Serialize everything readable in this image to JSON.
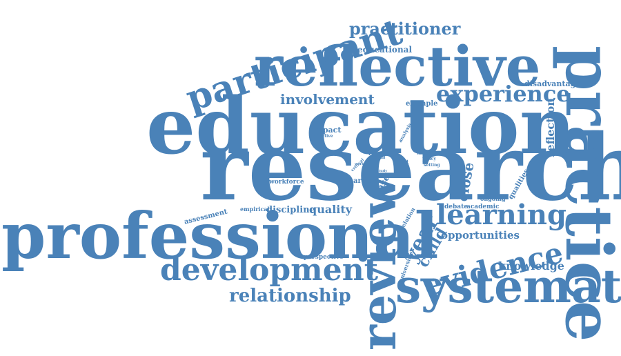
{
  "theme": {
    "word_color": "#4a82b8",
    "background": "#ffffff"
  },
  "words": [
    {
      "text": "education"
    },
    {
      "text": "research"
    },
    {
      "text": "professional"
    },
    {
      "text": "reflective"
    },
    {
      "text": "practice"
    },
    {
      "text": "systematic"
    },
    {
      "text": "review"
    },
    {
      "text": "participant"
    },
    {
      "text": "development"
    },
    {
      "text": "evidence"
    },
    {
      "text": "learning"
    },
    {
      "text": "experience"
    },
    {
      "text": "practitioner"
    },
    {
      "text": "relationship"
    },
    {
      "text": "involvement"
    },
    {
      "text": "year"
    },
    {
      "text": "child"
    },
    {
      "text": "close"
    },
    {
      "text": "reflection"
    },
    {
      "text": "knowledge"
    },
    {
      "text": "opportunities"
    },
    {
      "text": "quality"
    },
    {
      "text": "discipline"
    },
    {
      "text": "educational"
    },
    {
      "text": "disadvantage"
    },
    {
      "text": "example"
    },
    {
      "text": "impact"
    },
    {
      "text": "workforce"
    },
    {
      "text": "article"
    },
    {
      "text": "base"
    },
    {
      "text": "assessment"
    },
    {
      "text": "perspective"
    },
    {
      "text": "empirical"
    },
    {
      "text": "qualities"
    },
    {
      "text": "universities"
    },
    {
      "text": "relation"
    },
    {
      "text": "debate"
    },
    {
      "text": "academic"
    },
    {
      "text": "ongoing"
    },
    {
      "text": "report"
    },
    {
      "text": "skill"
    },
    {
      "text": "most"
    },
    {
      "text": "theory"
    },
    {
      "text": "policy"
    },
    {
      "text": "setting"
    },
    {
      "text": "effective"
    },
    {
      "text": "analysis"
    },
    {
      "text": "critical"
    },
    {
      "text": "work"
    },
    {
      "text": "study"
    },
    {
      "text": "value"
    }
  ]
}
